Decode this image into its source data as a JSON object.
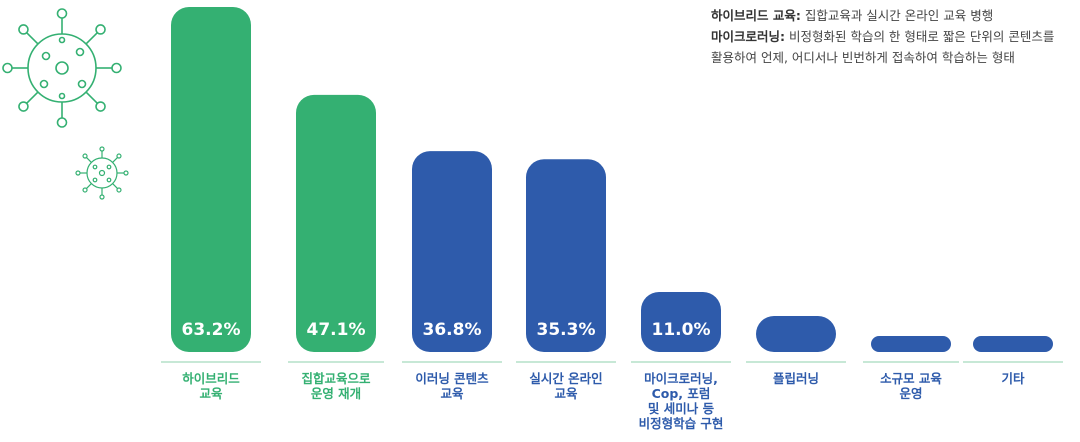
{
  "legend": {
    "items": [
      {
        "term": "하이브리드 교육:",
        "desc": " 집합교육과 실시간 온라인 교육 병행"
      },
      {
        "term": "마이크로러닝:",
        "desc": " 비정형화된 학습의 한 형태로 짧은 단위의 콘텐츠를",
        "desc2": "활용하여 언제, 어디서나 빈번하게 접속하여 학습하는 형태"
      }
    ]
  },
  "colors": {
    "green": "#34b072",
    "blue": "#2e5bab",
    "virus": "#34b072",
    "separator": "#8fd1ae"
  },
  "icons": [
    "virus-icon-large",
    "virus-icon-small"
  ],
  "chart_data": {
    "type": "bar",
    "unit": "%",
    "categories": [
      [
        "하이브리드",
        "교육"
      ],
      [
        "집합교육으로",
        "운영 재개"
      ],
      [
        "이러닝 콘텐츠",
        "교육"
      ],
      [
        "실시간 온라인",
        "교육"
      ],
      [
        "마이크로러닝,",
        "Cop, 포럼",
        "및 세미나 등",
        "비정형학습 구현"
      ],
      [
        "플립러닝"
      ],
      [
        "소규모 교육",
        "운영"
      ],
      [
        "기타"
      ]
    ],
    "values": [
      63.2,
      47.1,
      36.8,
      35.3,
      11.0,
      6.6,
      0.7,
      0.7
    ],
    "labels": [
      "63.2%",
      "47.1%",
      "36.8%",
      "35.3%",
      "11.0%",
      "6.6%",
      "0.7%",
      "0.7%"
    ],
    "highlight": [
      true,
      true,
      false,
      false,
      false,
      false,
      false,
      false
    ],
    "ylim": [
      0,
      63.2
    ],
    "grid": false
  }
}
